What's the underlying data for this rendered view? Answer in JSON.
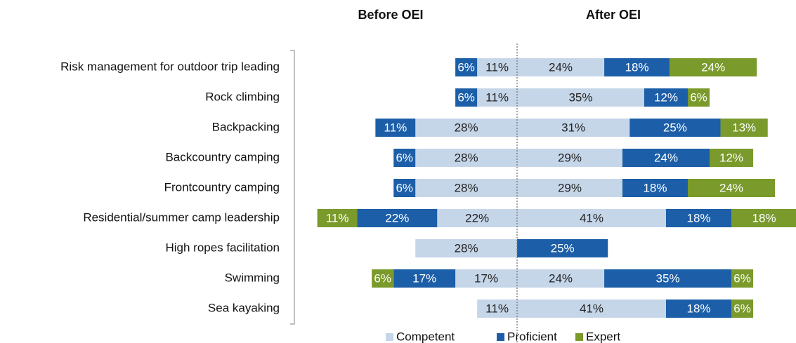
{
  "chart_data": {
    "type": "diverging_bar",
    "categories": [
      "Risk management for outdoor trip leading",
      "Rock climbing",
      "Backpacking",
      "Backcountry camping",
      "Frontcountry camping",
      "Residential/summer camp leadership",
      "High ropes facilitation",
      "Swimming",
      "Sea kayaking"
    ],
    "groups": [
      {
        "title": "Before OEI",
        "series": [
          {
            "name": "Competent",
            "color": "#c6d6e9",
            "values": [
              11,
              11,
              28,
              28,
              28,
              22,
              28,
              17,
              11
            ],
            "value_labels": [
              "11%",
              "11%",
              "28%",
              "28%",
              "28%",
              "22%",
              "28%",
              "17%",
              "11%"
            ]
          },
          {
            "name": "Proficient",
            "color": "#1c5ea8",
            "values": [
              6,
              6,
              11,
              6,
              6,
              22,
              null,
              17,
              null
            ],
            "value_labels": [
              "6%",
              "6%",
              "11%",
              "6%",
              "6%",
              "22%",
              null,
              "17%",
              null
            ]
          },
          {
            "name": "Expert",
            "color": "#7a9a2c",
            "values": [
              null,
              null,
              null,
              null,
              null,
              11,
              null,
              6,
              null
            ],
            "value_labels": [
              null,
              null,
              null,
              null,
              null,
              "11%",
              null,
              "6%",
              null
            ]
          }
        ]
      },
      {
        "title": "After OEI",
        "series": [
          {
            "name": "Competent",
            "color": "#c6d6e9",
            "values": [
              24,
              35,
              31,
              29,
              29,
              41,
              null,
              24,
              41
            ],
            "value_labels": [
              "24%",
              "35%",
              "31%",
              "29%",
              "29%",
              "41%",
              null,
              "24%",
              "41%"
            ]
          },
          {
            "name": "Proficient",
            "color": "#1c5ea8",
            "values": [
              18,
              12,
              25,
              24,
              18,
              18,
              25,
              35,
              18
            ],
            "value_labels": [
              "18%",
              "12%",
              "25%",
              "24%",
              "18%",
              "18%",
              "25%",
              "35%",
              "18%"
            ]
          },
          {
            "name": "Expert",
            "color": "#7a9a2c",
            "values": [
              24,
              6,
              13,
              12,
              24,
              18,
              null,
              6,
              6
            ],
            "value_labels": [
              "24%",
              "6%",
              "13%",
              "12%",
              "24%",
              "18%",
              null,
              "6%",
              "6%"
            ]
          }
        ]
      }
    ]
  }
}
